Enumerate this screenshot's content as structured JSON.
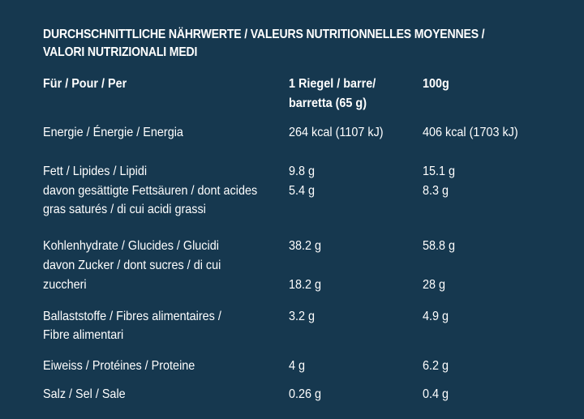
{
  "title": {
    "line1": "DURCHSCHNITTLICHE NÄHRWERTE / VALEURS NUTRITIONNELLES MOYENNES /",
    "line2": "VALORI NUTRIZIONALI MEDI"
  },
  "header": {
    "per": "Für / Pour / Per",
    "portion_line1": "1 Riegel / barre/",
    "portion_line2": "barretta (65 g)",
    "per100": "100g"
  },
  "rows": {
    "energy": {
      "label": "Energie / Énergie / Energia",
      "portion": "264 kcal (1107 kJ)",
      "per100": "406 kcal (1703 kJ)"
    },
    "fat": {
      "label": "Fett / Lipides / Lipidi",
      "portion": "9.8 g",
      "per100": "15.1 g"
    },
    "saturates": {
      "label_line1": "davon gesättigte Fettsäuren / dont acides",
      "label_line2": "gras saturés / di cui acidi grassi",
      "portion": "5.4 g",
      "per100": "8.3 g"
    },
    "carbs": {
      "label": "Kohlenhydrate / Glucides / Glucidi",
      "portion": "38.2 g",
      "per100": "58.8 g"
    },
    "sugars": {
      "label_line1": "davon Zucker / dont sucres / di cui",
      "label_line2": "zuccheri",
      "portion": "18.2 g",
      "per100": "28 g"
    },
    "fibre": {
      "label_line1": "Ballaststoffe / Fibres alimentaires /",
      "label_line2": "Fibre alimentari",
      "portion": "3.2 g",
      "per100": "4.9 g"
    },
    "protein": {
      "label": "Eiweiss / Protéines / Proteine",
      "portion": "4 g",
      "per100": "6.2 g"
    },
    "salt": {
      "label": "Salz / Sel / Sale",
      "portion": "0.26 g",
      "per100": "0.4 g"
    }
  }
}
